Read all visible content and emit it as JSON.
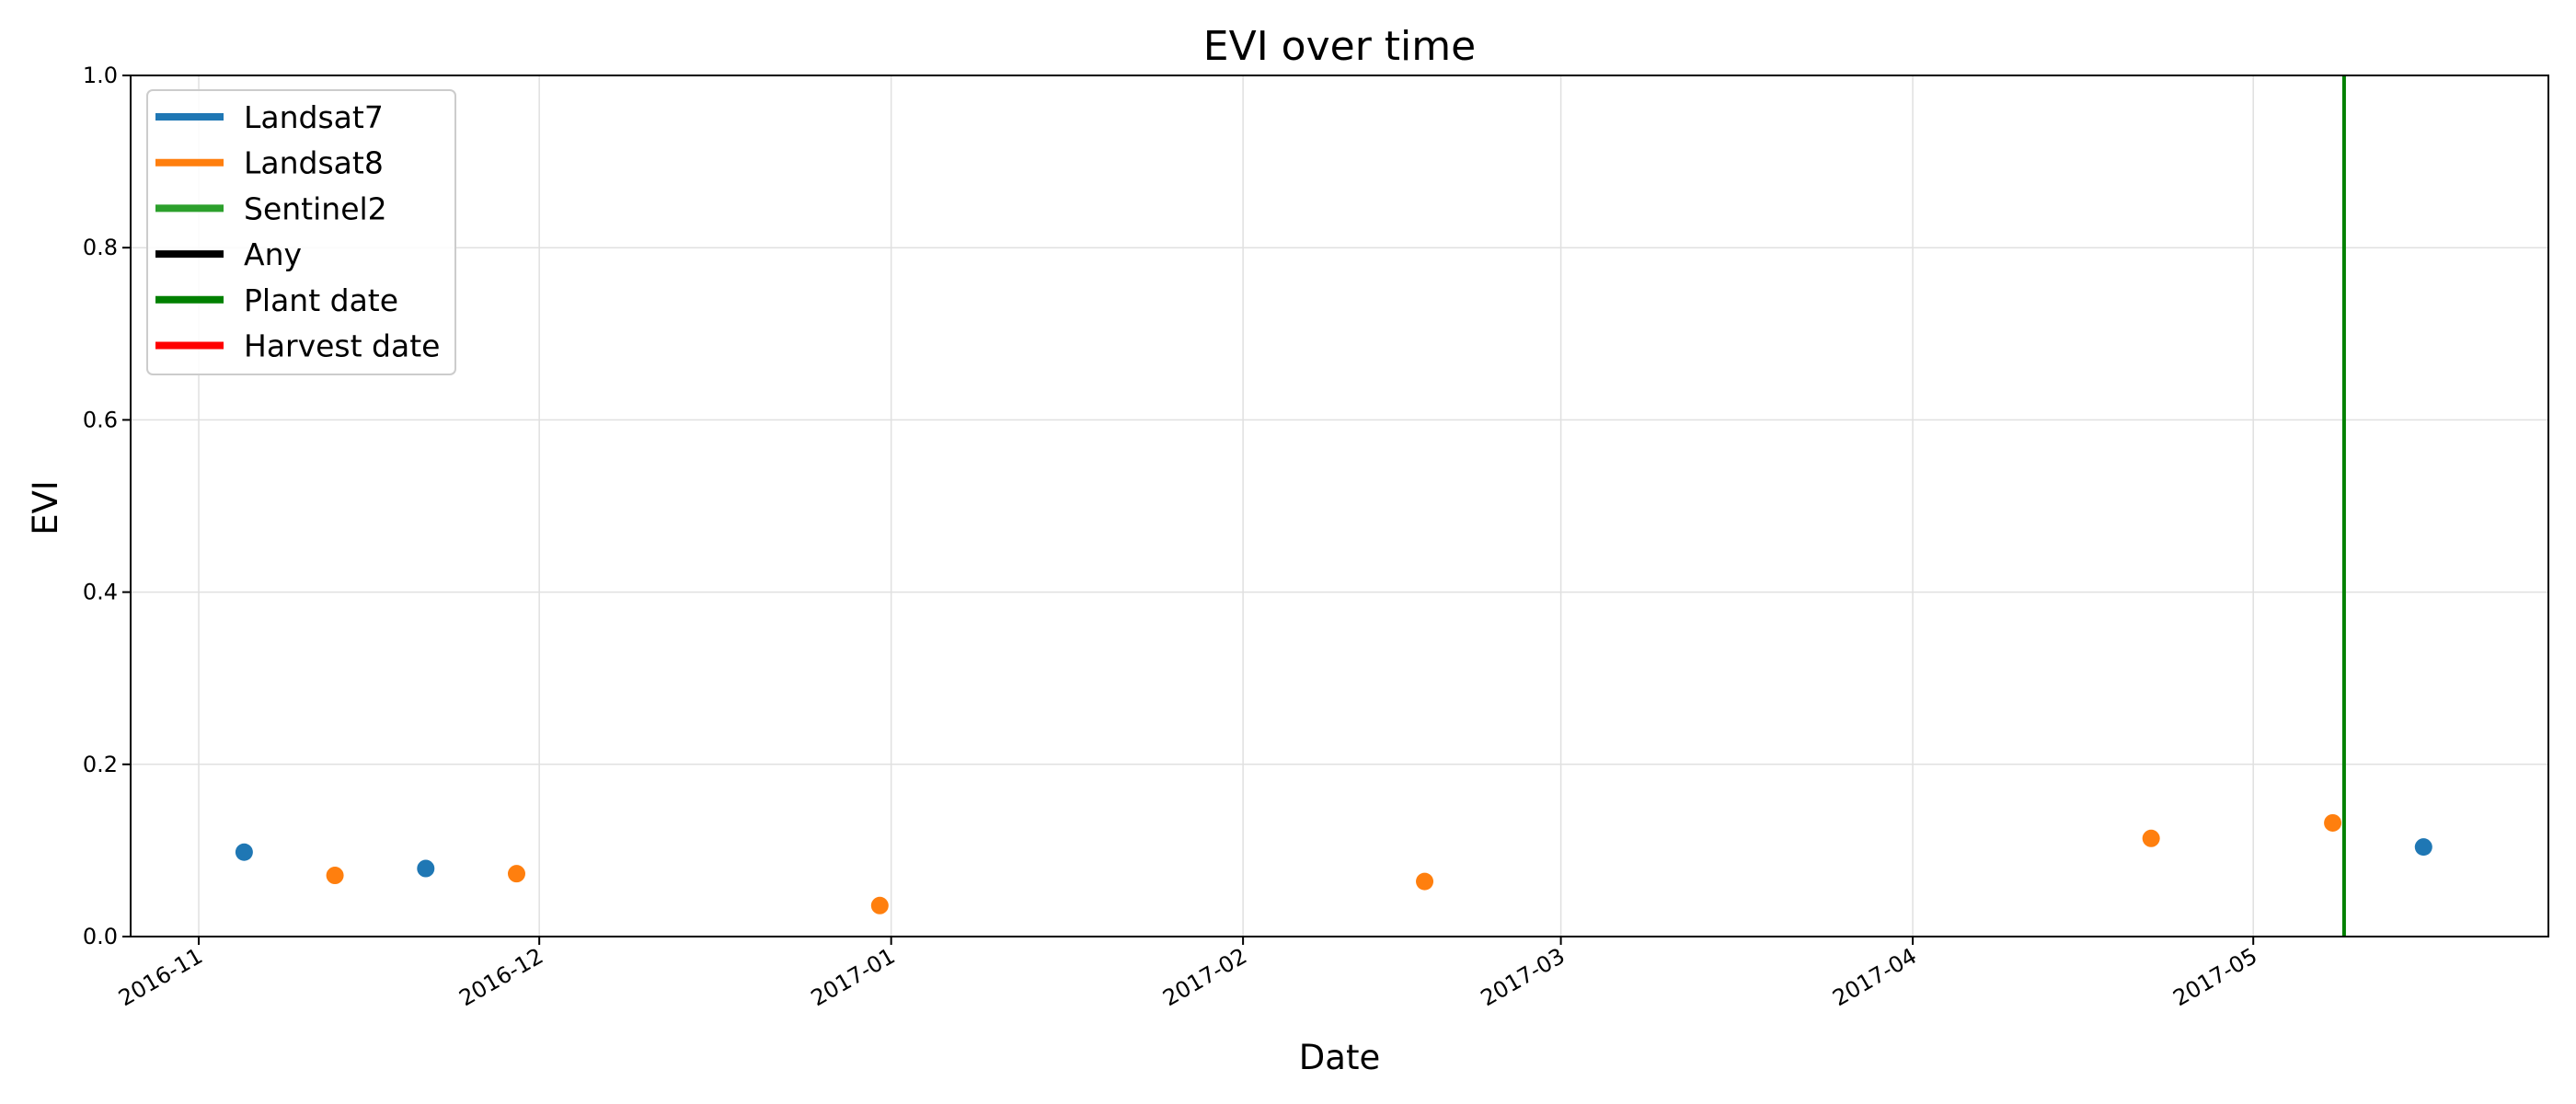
{
  "chart_data": {
    "type": "scatter",
    "title": "EVI over time",
    "xlabel": "Date",
    "ylabel": "EVI",
    "xlim": [
      "2016-10-26",
      "2017-05-27"
    ],
    "ylim": [
      0,
      1
    ],
    "x_ticks": [
      "2016-11",
      "2016-12",
      "2017-01",
      "2017-02",
      "2017-03",
      "2017-04",
      "2017-05"
    ],
    "x_tick_dates": [
      "2016-11-01",
      "2016-12-01",
      "2017-01-01",
      "2017-02-01",
      "2017-03-01",
      "2017-04-01",
      "2017-05-01"
    ],
    "y_ticks": [
      "0.0",
      "0.2",
      "0.4",
      "0.6",
      "0.8",
      "1.0"
    ],
    "y_tick_values": [
      0,
      0.2,
      0.4,
      0.6,
      0.8,
      1.0
    ],
    "grid": true,
    "legend_position": "top-left",
    "legend": [
      {
        "label": "Landsat7",
        "color": "#1f77b4"
      },
      {
        "label": "Landsat8",
        "color": "#ff7f0e"
      },
      {
        "label": "Sentinel2",
        "color": "#2ca02c"
      },
      {
        "label": "Any",
        "color": "#000000"
      },
      {
        "label": "Plant date",
        "color": "#008000"
      },
      {
        "label": "Harvest date",
        "color": "#ff0000"
      }
    ],
    "series": [
      {
        "name": "Landsat7",
        "color": "#1f77b4",
        "points": [
          {
            "x": "2016-11-05",
            "y": 0.098
          },
          {
            "x": "2016-11-21",
            "y": 0.079
          },
          {
            "x": "2017-05-16",
            "y": 0.104
          }
        ]
      },
      {
        "name": "Landsat8",
        "color": "#ff7f0e",
        "points": [
          {
            "x": "2016-11-13",
            "y": 0.071
          },
          {
            "x": "2016-11-29",
            "y": 0.073
          },
          {
            "x": "2016-12-31",
            "y": 0.036
          },
          {
            "x": "2017-02-17",
            "y": 0.064
          },
          {
            "x": "2017-04-22",
            "y": 0.114
          },
          {
            "x": "2017-05-08",
            "y": 0.132
          }
        ]
      }
    ],
    "vlines": [
      {
        "name": "Plant date",
        "x": "2017-05-09",
        "color": "#008000"
      }
    ]
  }
}
